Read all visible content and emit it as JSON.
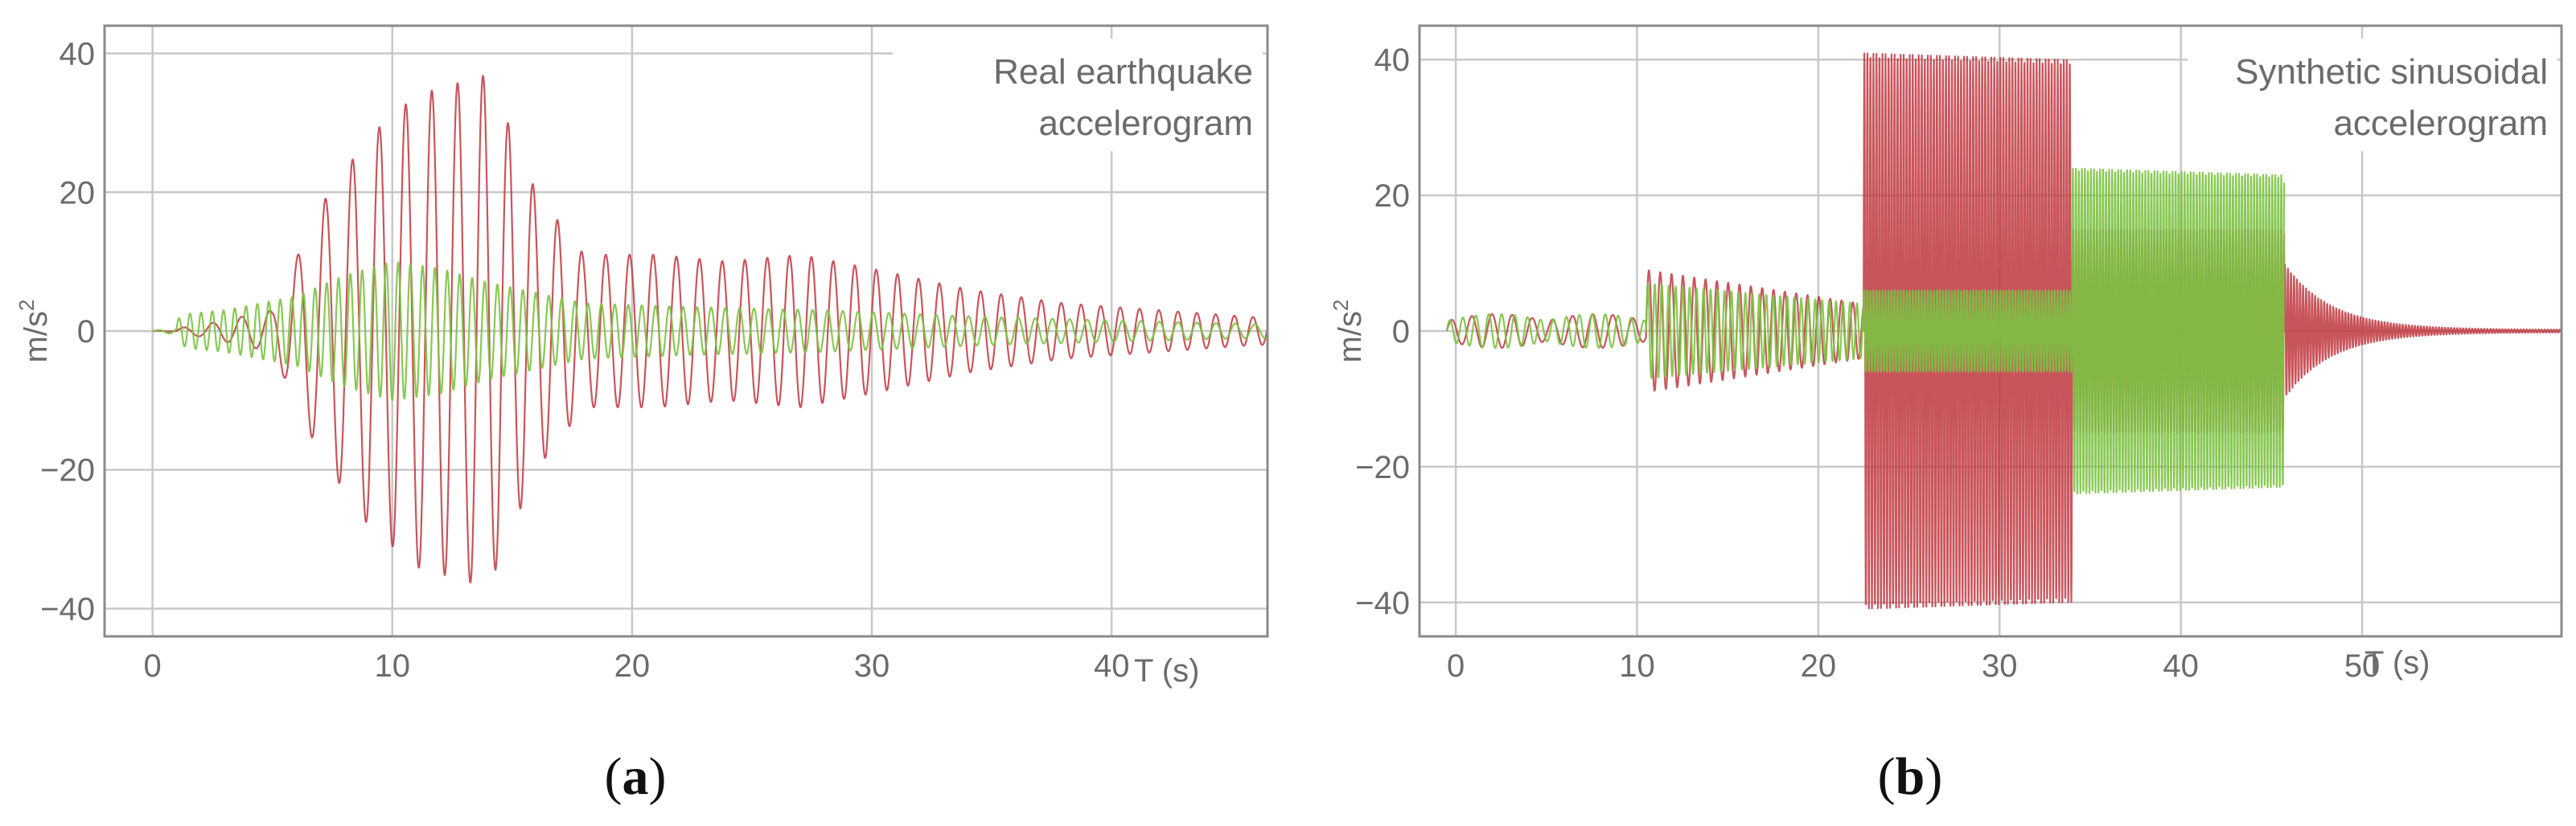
{
  "colors": {
    "red": "#c0373f",
    "green": "#7cc242",
    "grid": "#c8c8c8",
    "frame": "#8a8a8a",
    "text": "#6b6b6b",
    "caption": "#111111"
  },
  "chart_data": [
    {
      "type": "line",
      "panel": "a",
      "caption": "a",
      "title_lines": [
        "Real earthquake",
        "accelerogram"
      ],
      "ylabel": "m/s",
      "ylabel_sup": "2",
      "xlabel": "T (s)",
      "xlim": [
        -2,
        46.5
      ],
      "ylim": [
        -44,
        44
      ],
      "x_ticks": [
        0,
        10,
        20,
        30,
        40
      ],
      "x_tick_labels": [
        "0",
        "10",
        "20",
        "30",
        "40"
      ],
      "y_ticks": [
        40,
        20,
        0,
        -20,
        -40
      ],
      "y_tick_labels": [
        "40",
        "20",
        "0",
        "−20",
        "−40"
      ],
      "grid": true,
      "series": [
        {
          "name": "red component",
          "color": "#c0373f",
          "signal": "chirp-burst",
          "frequency_hz": [
            0.8,
            1.3
          ],
          "start_s": 1,
          "envelope_s": [
            0,
            2,
            5,
            7,
            9,
            11,
            13,
            14,
            16,
            18,
            21,
            24,
            27,
            30,
            34,
            38,
            42,
            46
          ],
          "envelope_ms2": [
            0,
            0.8,
            3,
            18,
            28,
            34,
            36,
            37,
            20,
            11,
            11,
            10,
            11,
            9,
            6,
            4,
            3,
            2
          ]
        },
        {
          "name": "green component",
          "color": "#7cc242",
          "signal": "chirp-burst",
          "frequency_hz": [
            2.2,
            1.2
          ],
          "start_s": 1,
          "envelope_s": [
            0,
            1.5,
            3,
            6,
            8,
            10,
            12,
            14,
            18,
            22,
            28,
            35,
            46
          ],
          "envelope_ms2": [
            0,
            2.5,
            3,
            5,
            8,
            10,
            9,
            7,
            4,
            3.5,
            3,
            2,
            1
          ]
        }
      ]
    },
    {
      "type": "line",
      "panel": "b",
      "caption": "b",
      "title_lines": [
        "Synthetic sinusoidal",
        "accelerogram"
      ],
      "ylabel": "m/s",
      "ylabel_sup": "2",
      "xlabel": "T (s)",
      "xlim": [
        -2,
        61
      ],
      "ylim": [
        -45,
        45
      ],
      "x_ticks": [
        0,
        10,
        20,
        30,
        40,
        50
      ],
      "x_tick_labels": [
        "0",
        "10",
        "20",
        "30",
        "40",
        "50"
      ],
      "y_ticks": [
        40,
        20,
        0,
        -20,
        -40
      ],
      "y_tick_labels": [
        "40",
        "20",
        "0",
        "−20",
        "−40"
      ],
      "grid": true,
      "series": [
        {
          "name": "red component",
          "color": "#c0373f",
          "signal": "stepped-sinusoid",
          "segments_s": [
            [
              -0.5,
              10.5
            ],
            [
              10.5,
              22.5
            ],
            [
              22.5,
              34
            ],
            [
              34,
              45.7
            ],
            [
              45.7,
              61
            ]
          ],
          "frequency_hz": [
            0.9,
            1.6,
            6,
            6,
            6
          ],
          "amplitude_ms2": [
            2.5,
            9,
            41,
            15,
            10
          ],
          "end_ms2": [
            2,
            4,
            40,
            15,
            0.2
          ]
        },
        {
          "name": "green component",
          "color": "#7cc242",
          "signal": "stepped-sinusoid",
          "segments_s": [
            [
              -0.5,
              10.5
            ],
            [
              10.5,
              22.5
            ],
            [
              22.5,
              34
            ],
            [
              34,
              45.7
            ]
          ],
          "frequency_hz": [
            1.4,
            2.6,
            6,
            6
          ],
          "amplitude_ms2": [
            2.5,
            7,
            6,
            24
          ],
          "end_ms2": [
            2,
            4,
            6,
            23
          ]
        }
      ]
    }
  ]
}
